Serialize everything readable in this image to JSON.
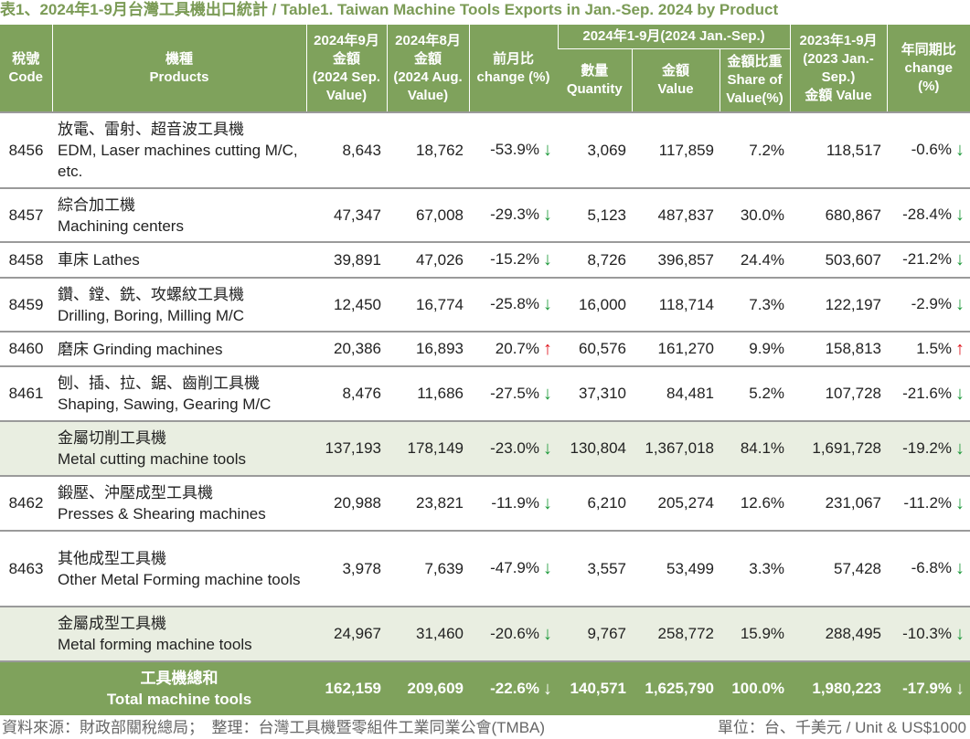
{
  "title": "表1、2024年1-9月台灣工具機出口統計 / Table1. Taiwan Machine Tools Exports  in Jan.-Sep. 2024 by Product",
  "headers": {
    "code": [
      "稅號",
      "Code"
    ],
    "products": [
      "機種",
      "Products"
    ],
    "sep": [
      "2024年9月",
      "金額",
      "(2024 Sep.",
      "Value)"
    ],
    "aug": [
      "2024年8月",
      "金額",
      "(2024 Aug.",
      "Value)"
    ],
    "mom": [
      "前月比",
      "change (%)"
    ],
    "group": "2024年1-9月(2024 Jan.-Sep.)",
    "qty": [
      "數量",
      "Quantity"
    ],
    "value": [
      "金額",
      "Value"
    ],
    "share": [
      "金額比重",
      "Share of",
      "Value(%)"
    ],
    "prev": [
      "2023年1-9月",
      "(2023 Jan.-",
      "Sep.)",
      "金額 Value"
    ],
    "yoy": [
      "年同期比",
      "change",
      "(%)"
    ]
  },
  "rows": [
    {
      "type": "item",
      "code": "8456",
      "zh": "放電、雷射、超音波工具機",
      "en": "EDM, Laser machines cutting M/C, etc.",
      "sep": "8,643",
      "aug": "18,762",
      "mom": "-53.9%",
      "mom_dir": "down",
      "qty": "3,069",
      "value": "117,859",
      "share": "7.2%",
      "prev": "118,517",
      "yoy": "-0.6%",
      "yoy_dir": "down",
      "h": 83
    },
    {
      "type": "item",
      "code": "8457",
      "zh": "綜合加工機",
      "en": "Machining centers",
      "sep": "47,347",
      "aug": "67,008",
      "mom": "-29.3%",
      "mom_dir": "down",
      "qty": "5,123",
      "value": "487,837",
      "share": "30.0%",
      "prev": "680,867",
      "yoy": "-28.4%",
      "yoy_dir": "down",
      "h": 59
    },
    {
      "type": "item",
      "code": "8458",
      "zh": "車床",
      "en": "Lathes",
      "inline": true,
      "sep": "39,891",
      "aug": "47,026",
      "mom": "-15.2%",
      "mom_dir": "down",
      "qty": "8,726",
      "value": "396,857",
      "share": "24.4%",
      "prev": "503,607",
      "yoy": "-21.2%",
      "yoy_dir": "down",
      "h": 39
    },
    {
      "type": "item",
      "code": "8459",
      "zh": "鑽、鏜、銑、攻螺紋工具機",
      "en": "Drilling, Boring, Milling M/C",
      "sep": "12,450",
      "aug": "16,774",
      "mom": "-25.8%",
      "mom_dir": "down",
      "qty": "16,000",
      "value": "118,714",
      "share": "7.3%",
      "prev": "122,197",
      "yoy": "-2.9%",
      "yoy_dir": "down",
      "h": 59
    },
    {
      "type": "item",
      "code": "8460",
      "zh": "磨床",
      "en": "Grinding machines",
      "inline": true,
      "sep": "20,386",
      "aug": "16,893",
      "mom": "20.7%",
      "mom_dir": "up",
      "qty": "60,576",
      "value": "161,270",
      "share": "9.9%",
      "prev": "158,813",
      "yoy": "1.5%",
      "yoy_dir": "up",
      "h": 38
    },
    {
      "type": "item",
      "code": "8461",
      "zh": "刨、插、拉、鋸、齒削工具機",
      "en": "Shaping, Sawing, Gearing M/C",
      "sep": "8,476",
      "aug": "11,686",
      "mom": "-27.5%",
      "mom_dir": "down",
      "qty": "37,310",
      "value": "84,481",
      "share": "5.2%",
      "prev": "107,728",
      "yoy": "-21.6%",
      "yoy_dir": "down",
      "h": 60
    },
    {
      "type": "sub",
      "code": "",
      "zh": "金屬切削工具機",
      "en": "Metal cutting machine tools",
      "sep": "137,193",
      "aug": "178,149",
      "mom": "-23.0%",
      "mom_dir": "down",
      "qty": "130,804",
      "value": "1,367,018",
      "share": "84.1%",
      "prev": "1,691,728",
      "yoy": "-19.2%",
      "yoy_dir": "down",
      "h": 60
    },
    {
      "type": "item",
      "code": "8462",
      "zh": "鍛壓、沖壓成型工具機",
      "en": "Presses & Shearing machines",
      "sep": "20,988",
      "aug": "23,821",
      "mom": "-11.9%",
      "mom_dir": "down",
      "qty": "6,210",
      "value": "205,274",
      "share": "12.6%",
      "prev": "231,067",
      "yoy": "-11.2%",
      "yoy_dir": "down",
      "h": 60
    },
    {
      "type": "item",
      "code": "8463",
      "zh": "其他成型工具機",
      "en": "Other Metal Forming machine tools",
      "sep": "3,978",
      "aug": "7,639",
      "mom": "-47.9%",
      "mom_dir": "down",
      "qty": "3,557",
      "value": "53,499",
      "share": "3.3%",
      "prev": "57,428",
      "yoy": "-6.8%",
      "yoy_dir": "down",
      "h": 83
    },
    {
      "type": "sub",
      "code": "",
      "zh": "金屬成型工具機",
      "en": "Metal forming machine tools",
      "sep": "24,967",
      "aug": "31,460",
      "mom": "-20.6%",
      "mom_dir": "down",
      "qty": "9,767",
      "value": "258,772",
      "share": "15.9%",
      "prev": "288,495",
      "yoy": "-10.3%",
      "yoy_dir": "down",
      "h": 60
    },
    {
      "type": "tot",
      "code": "",
      "zh": "工具機總和",
      "en": "Total machine tools",
      "sep": "162,159",
      "aug": "209,609",
      "mom": "-22.6%",
      "mom_dir": "down",
      "qty": "140,571",
      "value": "1,625,790",
      "share": "100.0%",
      "prev": "1,980,223",
      "yoy": "-17.9%",
      "yoy_dir": "down",
      "h": 59
    }
  ],
  "footer": {
    "source": "資料來源：財政部關稅總局；　整理：台灣工具機暨零組件工業同業公會(TMBA)",
    "unit": "單位：台、千美元 / Unit & US$1000"
  },
  "colors": {
    "header": "#7fa25c",
    "subtotal": "#e9eee1",
    "down": "#1f9a3c",
    "up": "#e0141c"
  }
}
